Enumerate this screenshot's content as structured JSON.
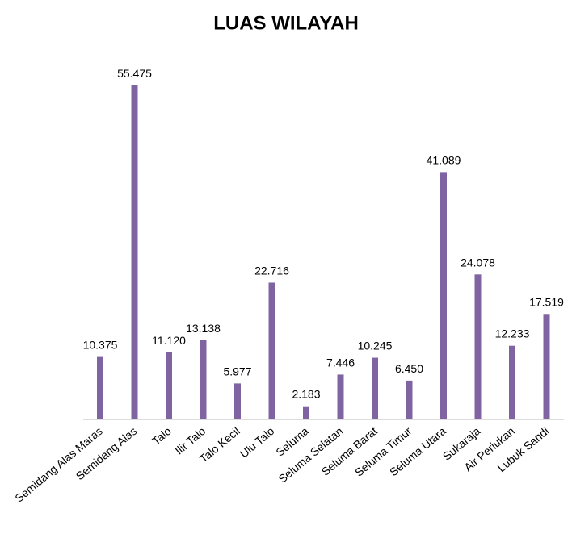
{
  "chart_data": {
    "type": "bar",
    "title": "LUAS WILAYAH",
    "categories": [
      "Semidang Alas Maras",
      "Semidang Alas",
      "Talo",
      "Ilir Talo",
      "Talo Kecil",
      "Ulu Talo",
      "Seluma",
      "Seluma Selatan",
      "Seluma Barat",
      "Seluma Timur",
      "Seluma Utara",
      "Sukaraja",
      "Air Periukan",
      "Lubuk Sandi"
    ],
    "values": [
      10.375,
      55.475,
      11.12,
      13.138,
      5.977,
      22.716,
      2.183,
      7.446,
      10.245,
      6.45,
      41.089,
      24.078,
      12.233,
      17.519
    ],
    "value_labels": [
      "10.375",
      "55.475",
      "11.120",
      "13.138",
      "5.977",
      "22.716",
      "2.183",
      "7.446",
      "10.245",
      "6.450",
      "41.089",
      "24.078",
      "12.233",
      "17.519"
    ],
    "color": "#8064a2"
  }
}
